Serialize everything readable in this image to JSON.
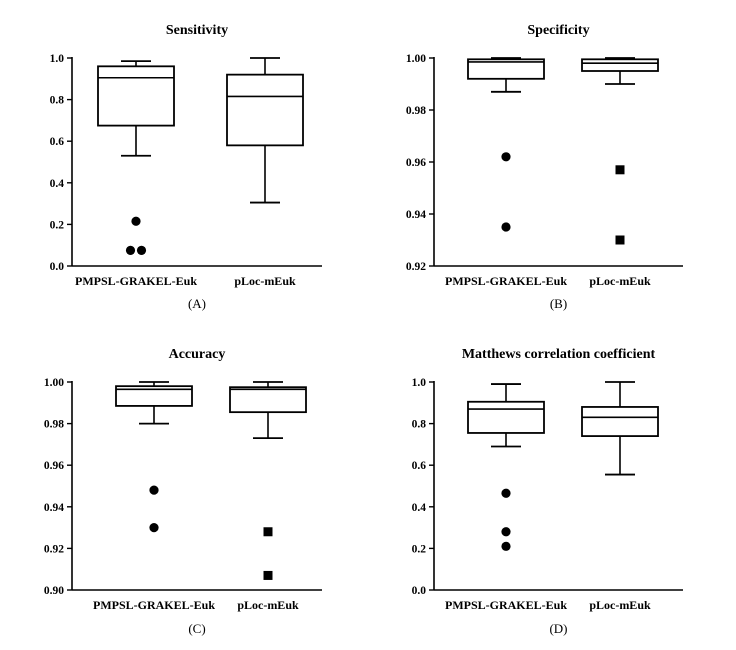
{
  "colors": {
    "ink": "#000000",
    "background": "#ffffff"
  },
  "chart_data": [
    {
      "type": "box",
      "title": "Sensitivity",
      "panel_label": "(A)",
      "categories": [
        "PMPSL-GRAKEL-Euk",
        "pLoc-mEuk"
      ],
      "ylim": [
        0.0,
        1.0
      ],
      "yticks": [
        0.0,
        0.2,
        0.4,
        0.6,
        0.8,
        1.0
      ],
      "ytick_labels": [
        "0.0",
        "0.2",
        "0.4",
        "0.6",
        "0.8",
        "1.0"
      ],
      "boxes": [
        {
          "name": "PMPSL-GRAKEL-Euk",
          "whisker_low": 0.53,
          "q1": 0.675,
          "median": 0.905,
          "q3": 0.96,
          "whisker_high": 0.985,
          "outliers": [
            0.215,
            0.075,
            0.075
          ],
          "outlier_marker": "circle"
        },
        {
          "name": "pLoc-mEuk",
          "whisker_low": 0.305,
          "q1": 0.58,
          "median": 0.815,
          "q3": 0.92,
          "whisker_high": 1.0,
          "outliers": [],
          "outlier_marker": "square"
        }
      ]
    },
    {
      "type": "box",
      "title": "Specificity",
      "panel_label": "(B)",
      "categories": [
        "PMPSL-GRAKEL-Euk",
        "pLoc-mEuk"
      ],
      "ylim": [
        0.92,
        1.0
      ],
      "yticks": [
        0.92,
        0.94,
        0.96,
        0.98,
        1.0
      ],
      "ytick_labels": [
        "0.92",
        "0.94",
        "0.96",
        "0.98",
        "1.00"
      ],
      "boxes": [
        {
          "name": "PMPSL-GRAKEL-Euk",
          "whisker_low": 0.987,
          "q1": 0.992,
          "median": 0.9985,
          "q3": 0.9995,
          "whisker_high": 1.0,
          "outliers": [
            0.962,
            0.935
          ],
          "outlier_marker": "circle"
        },
        {
          "name": "pLoc-mEuk",
          "whisker_low": 0.99,
          "q1": 0.995,
          "median": 0.998,
          "q3": 0.9995,
          "whisker_high": 1.0,
          "outliers": [
            0.957,
            0.93
          ],
          "outlier_marker": "square"
        }
      ]
    },
    {
      "type": "box",
      "title": "Accuracy",
      "panel_label": "(C)",
      "categories": [
        "PMPSL-GRAKEL-Euk",
        "pLoc-mEuk"
      ],
      "ylim": [
        0.9,
        1.0
      ],
      "yticks": [
        0.9,
        0.92,
        0.94,
        0.96,
        0.98,
        1.0
      ],
      "ytick_labels": [
        "0.90",
        "0.92",
        "0.94",
        "0.96",
        "0.98",
        "1.00"
      ],
      "boxes": [
        {
          "name": "PMPSL-GRAKEL-Euk",
          "whisker_low": 0.98,
          "q1": 0.9885,
          "median": 0.9965,
          "q3": 0.998,
          "whisker_high": 1.0,
          "outliers": [
            0.948,
            0.93
          ],
          "outlier_marker": "circle"
        },
        {
          "name": "pLoc-mEuk",
          "whisker_low": 0.973,
          "q1": 0.9855,
          "median": 0.9965,
          "q3": 0.9975,
          "whisker_high": 1.0,
          "outliers": [
            0.928,
            0.907
          ],
          "outlier_marker": "square"
        }
      ]
    },
    {
      "type": "box",
      "title": "Matthews correlation coefficient",
      "panel_label": "(D)",
      "categories": [
        "PMPSL-GRAKEL-Euk",
        "pLoc-mEuk"
      ],
      "ylim": [
        0.0,
        1.0
      ],
      "yticks": [
        0.0,
        0.2,
        0.4,
        0.6,
        0.8,
        1.0
      ],
      "ytick_labels": [
        "0.0",
        "0.2",
        "0.4",
        "0.6",
        "0.8",
        "1.0"
      ],
      "boxes": [
        {
          "name": "PMPSL-GRAKEL-Euk",
          "whisker_low": 0.69,
          "q1": 0.755,
          "median": 0.87,
          "q3": 0.905,
          "whisker_high": 0.99,
          "outliers": [
            0.465,
            0.28,
            0.21
          ],
          "outlier_marker": "circle"
        },
        {
          "name": "pLoc-mEuk",
          "whisker_low": 0.555,
          "q1": 0.74,
          "median": 0.83,
          "q3": 0.88,
          "whisker_high": 1.0,
          "outliers": [],
          "outlier_marker": "square"
        }
      ]
    }
  ]
}
